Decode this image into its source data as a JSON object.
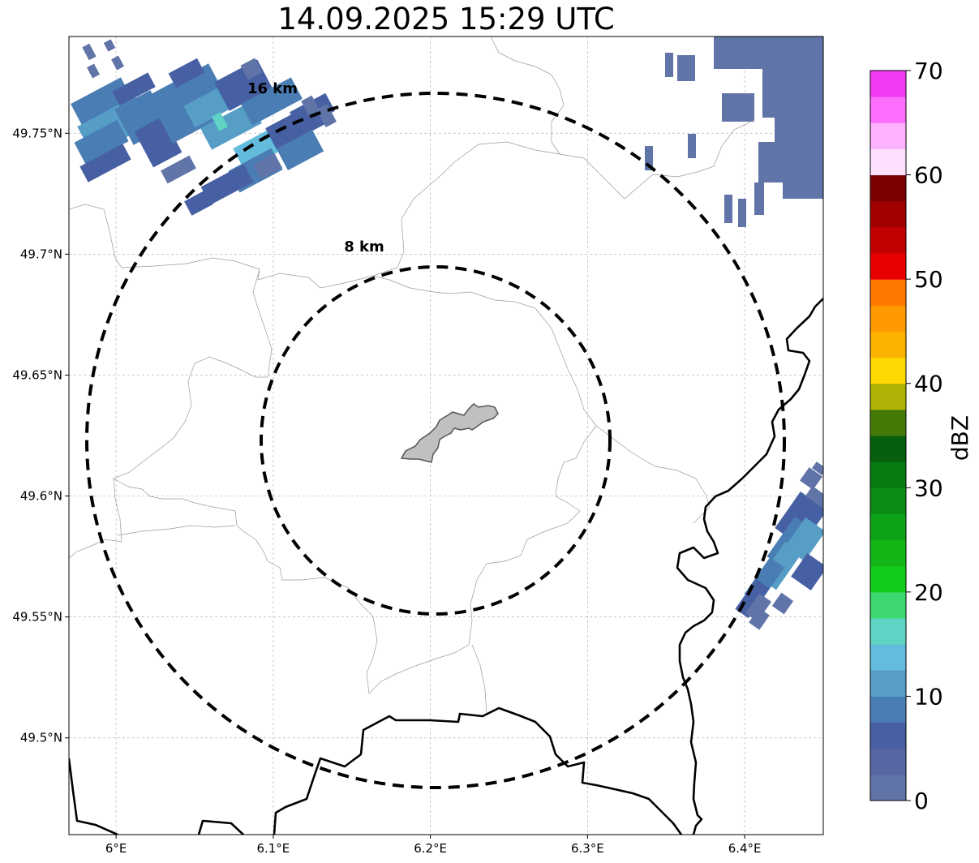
{
  "title": "14.09.2025 15:29 UTC",
  "map": {
    "lon_range": [
      5.97,
      6.45
    ],
    "lat_range": [
      49.46,
      49.79
    ],
    "center": {
      "lon": 6.2,
      "lat": 49.623
    },
    "gridlines": true
  },
  "x_ticks": [
    {
      "value": 6.0,
      "label": "6°E"
    },
    {
      "value": 6.1,
      "label": "6.1°E"
    },
    {
      "value": 6.2,
      "label": "6.2°E"
    },
    {
      "value": 6.3,
      "label": "6.3°E"
    },
    {
      "value": 6.4,
      "label": "6.4°E"
    }
  ],
  "y_ticks": [
    {
      "value": 49.75,
      "label": "49.75°N"
    },
    {
      "value": 49.7,
      "label": "49.7°N"
    },
    {
      "value": 49.65,
      "label": "49.65°N"
    },
    {
      "value": 49.6,
      "label": "49.6°N"
    },
    {
      "value": 49.55,
      "label": "49.55°N"
    },
    {
      "value": 49.5,
      "label": "49.5°N"
    }
  ],
  "range_rings": [
    {
      "radius_km": 8,
      "label": "8 km"
    },
    {
      "radius_km": 16,
      "label": "16 km"
    }
  ],
  "colorbar": {
    "label": "dBZ",
    "min": 0,
    "max": 70,
    "step": 2.5,
    "ticks": [
      "0",
      "10",
      "20",
      "30",
      "40",
      "50",
      "60",
      "70"
    ],
    "colors": [
      "#6174a8",
      "#5566a2",
      "#4760a3",
      "#4a7db4",
      "#569ec6",
      "#64bcdc",
      "#5fd4c4",
      "#3dd86f",
      "#12cc1a",
      "#12b716",
      "#0ea316",
      "#0b8e14",
      "#087a12",
      "#055f0c",
      "#457a08",
      "#aeb306",
      "#fdd802",
      "#fdb200",
      "#fe9900",
      "#fe7800",
      "#e80000",
      "#c10000",
      "#a10000",
      "#7a0000",
      "#fde0fd",
      "#fdb2fd",
      "#fe6efe",
      "#f23af2"
    ]
  },
  "echo_colors": {
    "faint": "#6174a8",
    "dark_blue": "#4760a3",
    "mid_blue": "#4a7db4",
    "light_blue": "#569ec6",
    "cyan": "#64bcdc",
    "teal": "#5fd4c4"
  },
  "site_fill": "#c0c0c0",
  "boundary_color": "#000000"
}
